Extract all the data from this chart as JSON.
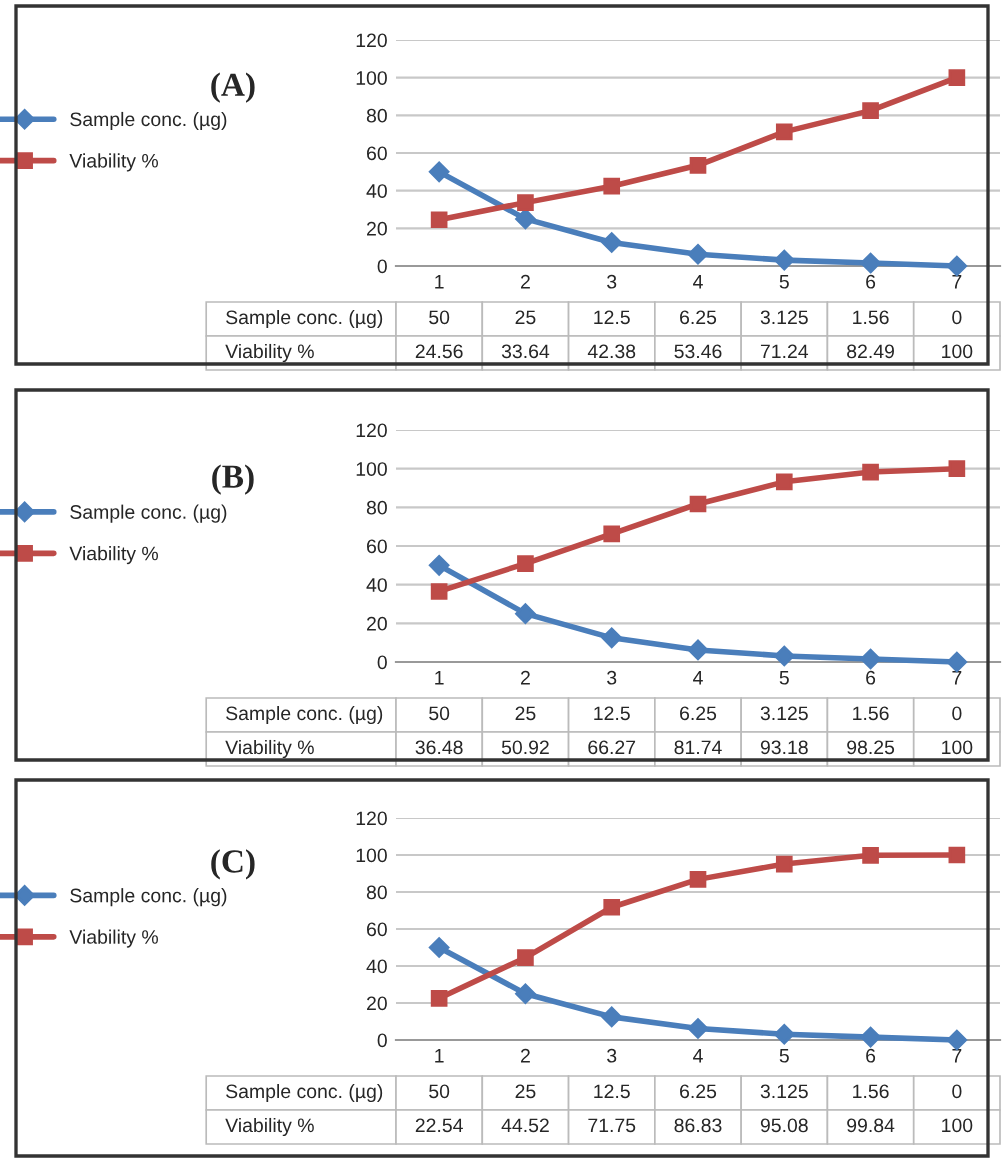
{
  "chart_data": [
    {
      "type": "line",
      "title": "(A)",
      "categories": [
        "1",
        "2",
        "3",
        "4",
        "5",
        "6",
        "7"
      ],
      "series": [
        {
          "name": "Sample conc. (µg)",
          "color": "#4a7ebb",
          "marker": "diamond",
          "values": [
            50,
            25,
            12.5,
            6.25,
            3.125,
            1.56,
            0
          ]
        },
        {
          "name": "Viability %",
          "color": "#be4b48",
          "marker": "square",
          "values": [
            24.56,
            33.64,
            42.38,
            53.46,
            71.24,
            82.49,
            100
          ]
        }
      ],
      "ylim": [
        0,
        120
      ],
      "yticks": [
        0,
        20,
        40,
        60,
        80,
        100,
        120
      ],
      "grid": "y",
      "legend": "left",
      "data_labels": true
    },
    {
      "type": "line",
      "title": "(B)",
      "categories": [
        "1",
        "2",
        "3",
        "4",
        "5",
        "6",
        "7"
      ],
      "series": [
        {
          "name": "Sample conc. (µg)",
          "color": "#4a7ebb",
          "marker": "diamond",
          "values": [
            50,
            25,
            12.5,
            6.25,
            3.125,
            1.56,
            0
          ]
        },
        {
          "name": "Viability %",
          "color": "#be4b48",
          "marker": "square",
          "values": [
            36.48,
            50.92,
            66.27,
            81.74,
            93.18,
            98.25,
            100
          ]
        }
      ],
      "ylim": [
        0,
        120
      ],
      "yticks": [
        0,
        20,
        40,
        60,
        80,
        100,
        120
      ],
      "grid": "y",
      "legend": "left",
      "data_labels": true
    },
    {
      "type": "line",
      "title": "(C)",
      "categories": [
        "1",
        "2",
        "3",
        "4",
        "5",
        "6",
        "7"
      ],
      "series": [
        {
          "name": "Sample conc. (µg)",
          "color": "#4a7ebb",
          "marker": "diamond",
          "values": [
            50,
            25,
            12.5,
            6.25,
            3.125,
            1.56,
            0
          ]
        },
        {
          "name": "Viability %",
          "color": "#be4b48",
          "marker": "square",
          "values": [
            22.54,
            44.52,
            71.75,
            86.83,
            95.08,
            99.84,
            100
          ]
        }
      ],
      "ylim": [
        0,
        120
      ],
      "yticks": [
        0,
        20,
        40,
        60,
        80,
        100,
        120
      ],
      "grid": "y",
      "legend": "left",
      "data_labels": true
    }
  ]
}
